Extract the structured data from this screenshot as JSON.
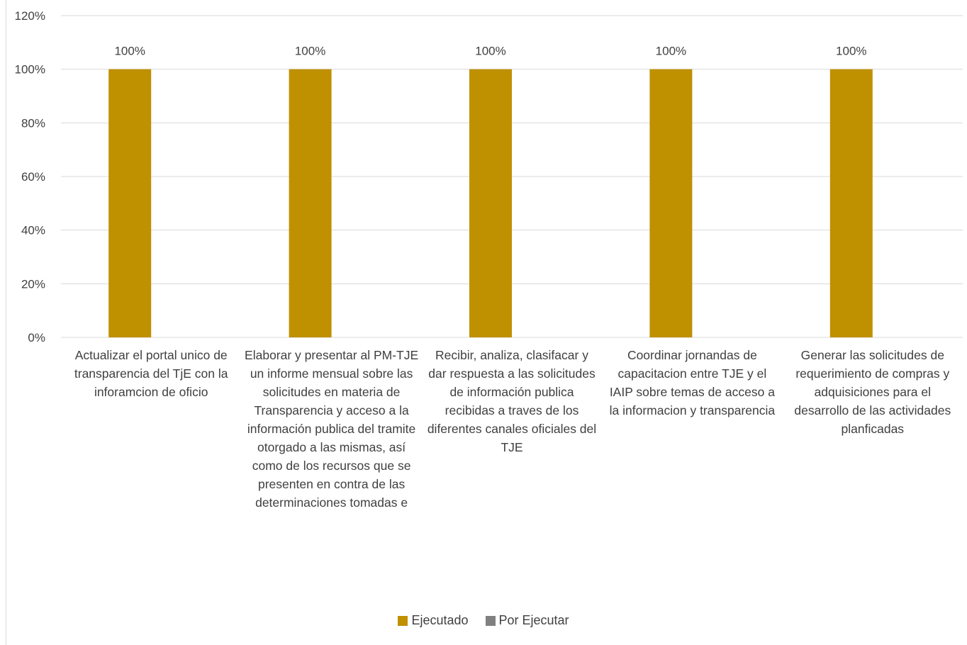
{
  "chart_data": {
    "type": "bar",
    "title": "",
    "xlabel": "",
    "ylabel": "",
    "ylim": [
      0,
      1.2
    ],
    "yticks": [
      "0%",
      "20%",
      "40%",
      "60%",
      "80%",
      "100%",
      "120%"
    ],
    "grid": true,
    "legend_position": "bottom",
    "categories": [
      "Actualizar el portal unico de transparencia del TjE con la inforamcion de oficio",
      "Elaborar y presentar  al PM-TJE un informe mensual   sobre las solicitudes en materia de Transparencia y acceso a la información publica del tramite otorgado a las mismas, así como de los recursos que se presenten en contra de las determinaciones tomadas e",
      "Recibir, analiza, clasifacar y dar respuesta a las solicitudes de información publica recibidas a traves de los diferentes canales oficiales del TJE",
      "Coordinar jornandas de capacitacion entre  TJE y el IAIP sobre temas de acceso a la informacion y transparencia",
      "Generar las solicitudes de requerimiento de compras y adquisiciones para el desarrollo de las actividades planficadas"
    ],
    "series": [
      {
        "name": "Ejecutado",
        "color": "#bf9000",
        "values": [
          1.0,
          1.0,
          1.0,
          1.0,
          1.0
        ],
        "data_labels": [
          "100%",
          "100%",
          "100%",
          "100%",
          "100%"
        ]
      },
      {
        "name": "Por Ejecutar",
        "color": "#808080",
        "values": [
          0,
          0,
          0,
          0,
          0
        ],
        "data_labels": [
          "",
          "",
          "",
          "",
          ""
        ]
      }
    ]
  }
}
